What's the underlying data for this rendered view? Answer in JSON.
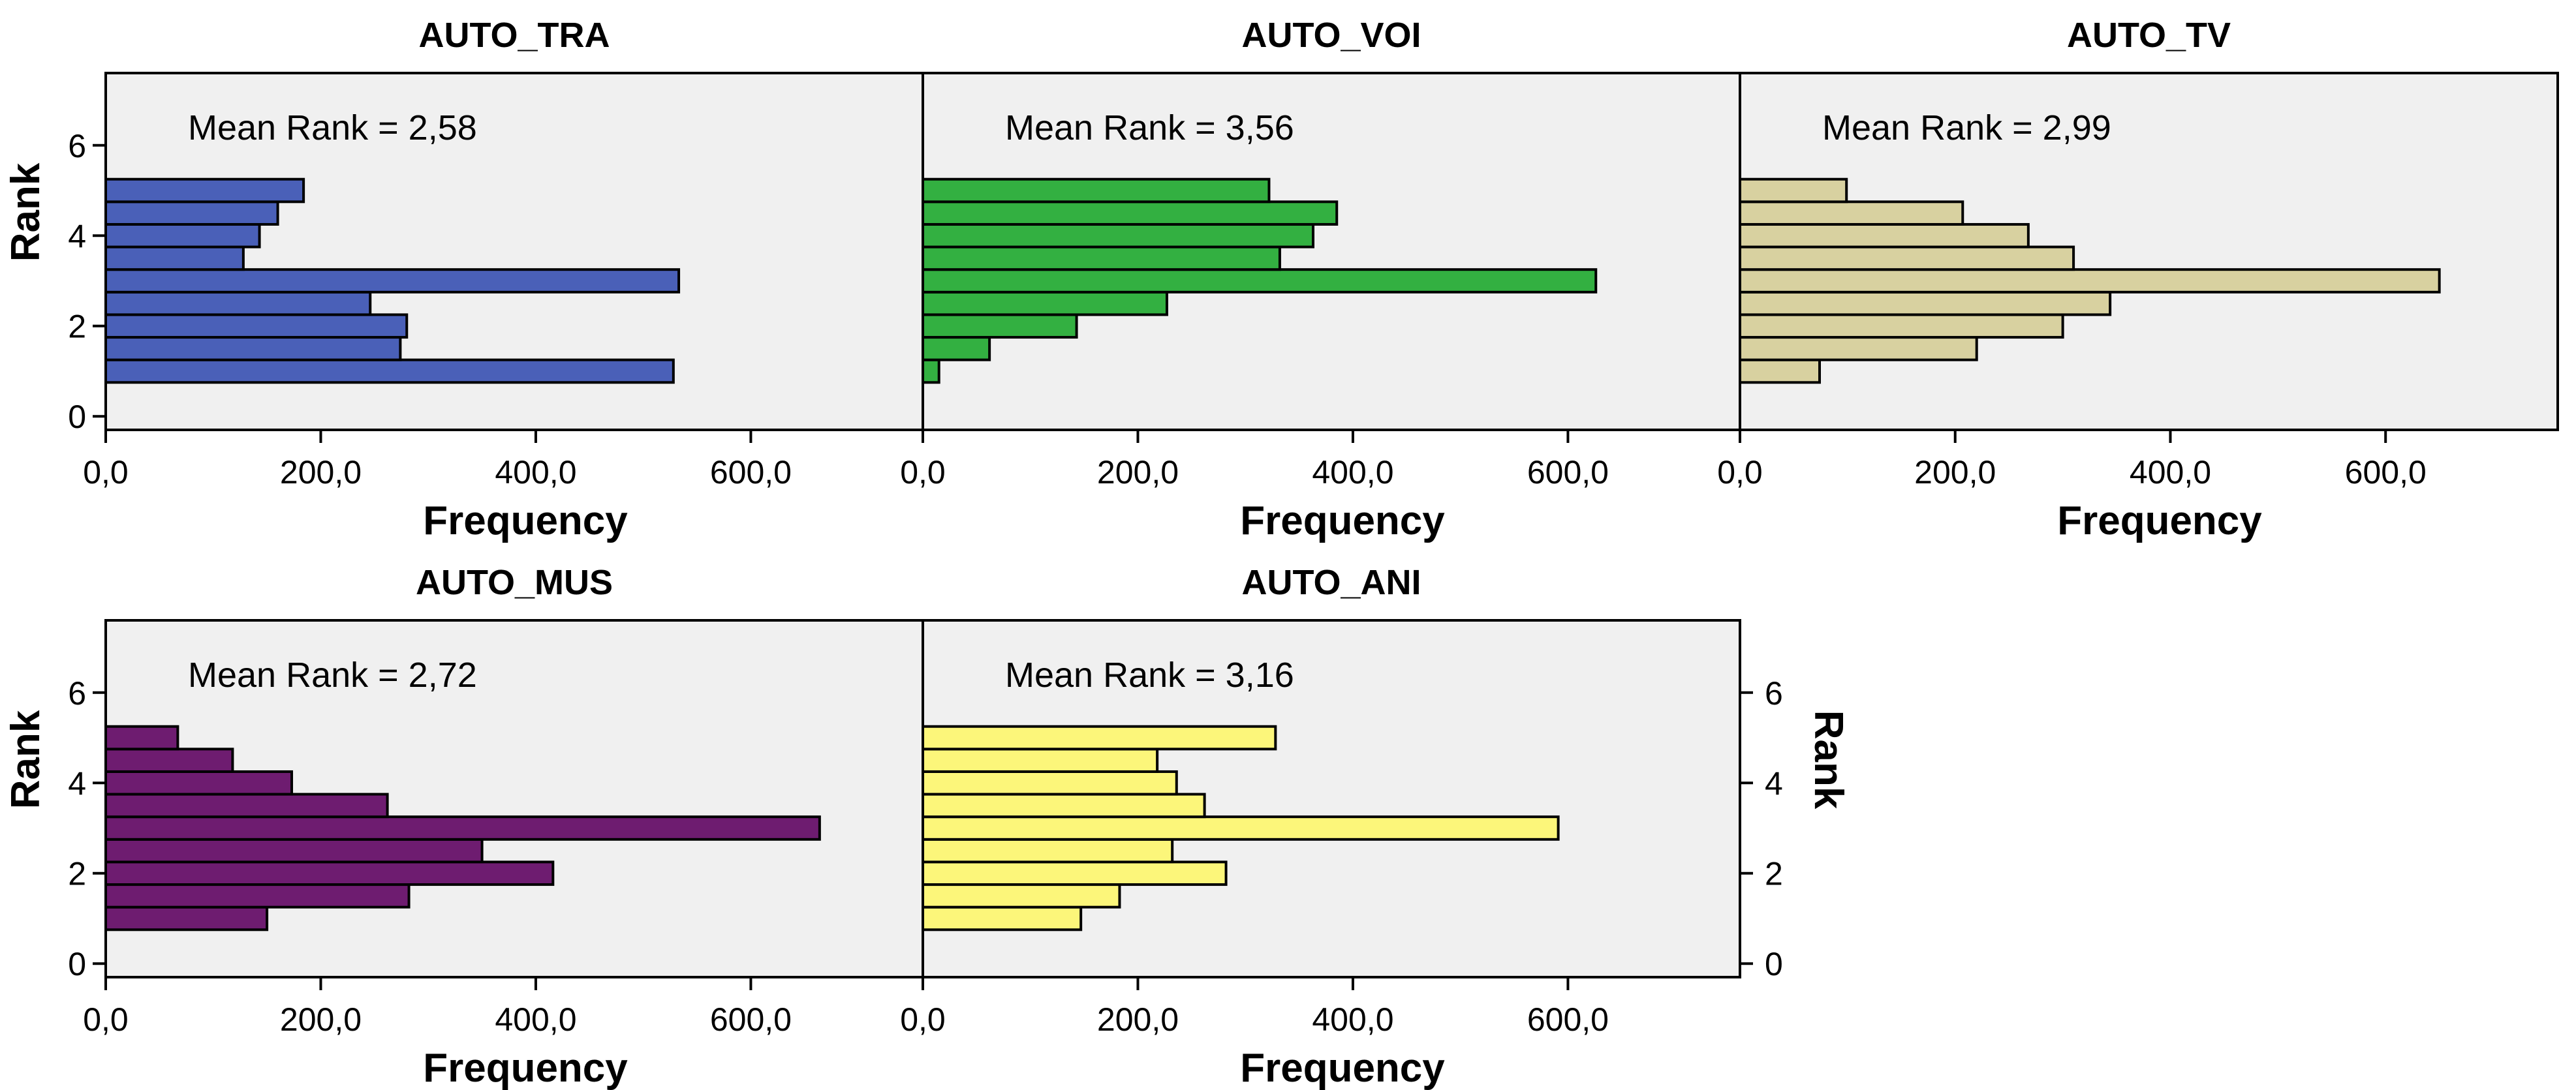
{
  "chart_data": [
    {
      "type": "bar",
      "orientation": "horizontal",
      "title": "AUTO_TRA",
      "annotation": "Mean Rank = 2,58",
      "xlabel": "Frequency",
      "ylabel": "Rank",
      "color": "#4a60b8",
      "x_ticks": [
        "0,0",
        "200,0",
        "400,0",
        "600,0"
      ],
      "y_ticks": [
        "0",
        "2",
        "4",
        "6"
      ],
      "xlim": [
        0,
        760
      ],
      "ylim": [
        -0.3,
        7.6
      ],
      "rank_values": [
        1.0,
        1.5,
        2.0,
        2.5,
        3.0,
        3.5,
        4.0,
        4.5,
        5.0
      ],
      "frequencies": [
        528,
        274,
        280,
        246,
        533,
        128,
        143,
        160,
        184
      ]
    },
    {
      "type": "bar",
      "orientation": "horizontal",
      "title": "AUTO_VOI",
      "annotation": "Mean Rank = 3,56",
      "xlabel": "Frequency",
      "ylabel": "",
      "color": "#33b041",
      "x_ticks": [
        "0,0",
        "200,0",
        "400,0",
        "600,0"
      ],
      "y_ticks": [],
      "xlim": [
        0,
        760
      ],
      "ylim": [
        -0.3,
        7.6
      ],
      "rank_values": [
        1.0,
        1.5,
        2.0,
        2.5,
        3.0,
        3.5,
        4.0,
        4.5,
        5.0
      ],
      "frequencies": [
        15,
        62,
        143,
        227,
        626,
        332,
        363,
        385,
        322
      ]
    },
    {
      "type": "bar",
      "orientation": "horizontal",
      "title": "AUTO_TV",
      "annotation": "Mean Rank = 2,99",
      "xlabel": "Frequency",
      "ylabel": "",
      "color": "#d8d1a0",
      "x_ticks": [
        "0,0",
        "200,0",
        "400,0",
        "600,0"
      ],
      "y_ticks": [],
      "xlim": [
        0,
        760
      ],
      "ylim": [
        -0.3,
        7.6
      ],
      "rank_values": [
        1.0,
        1.5,
        2.0,
        2.5,
        3.0,
        3.5,
        4.0,
        4.5,
        5.0
      ],
      "frequencies": [
        74,
        220,
        300,
        344,
        650,
        310,
        268,
        207,
        99
      ]
    },
    {
      "type": "bar",
      "orientation": "horizontal",
      "title": "AUTO_MUS",
      "annotation": "Mean Rank = 2,72",
      "xlabel": "Frequency",
      "ylabel": "Rank",
      "color": "#6e1c70",
      "x_ticks": [
        "0,0",
        "200,0",
        "400,0",
        "600,0"
      ],
      "y_ticks": [
        "0",
        "2",
        "4",
        "6"
      ],
      "xlim": [
        0,
        760
      ],
      "ylim": [
        -0.3,
        7.6
      ],
      "rank_values": [
        1.0,
        1.5,
        2.0,
        2.5,
        3.0,
        3.5,
        4.0,
        4.5,
        5.0
      ],
      "frequencies": [
        150,
        282,
        416,
        350,
        664,
        262,
        173,
        118,
        67
      ]
    },
    {
      "type": "bar",
      "orientation": "horizontal",
      "title": "AUTO_ANI",
      "annotation": "Mean Rank = 3,16",
      "xlabel": "Frequency",
      "ylabel": "Rank",
      "ylabel_side": "right",
      "color": "#fcf67a",
      "x_ticks": [
        "0,0",
        "200,0",
        "400,0",
        "600,0"
      ],
      "y_ticks": [
        "0",
        "2",
        "4",
        "6"
      ],
      "xlim": [
        0,
        760
      ],
      "ylim": [
        -0.3,
        7.6
      ],
      "rank_values": [
        1.0,
        1.5,
        2.0,
        2.5,
        3.0,
        3.5,
        4.0,
        4.5,
        5.0
      ],
      "frequencies": [
        147,
        183,
        282,
        232,
        591,
        262,
        236,
        218,
        328
      ]
    }
  ]
}
